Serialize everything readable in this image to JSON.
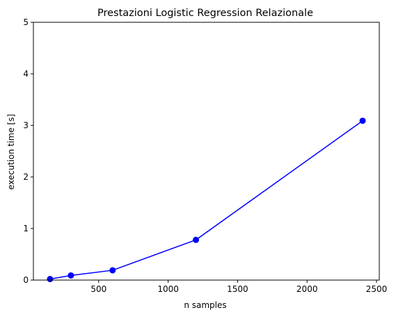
{
  "chart_data": {
    "type": "line",
    "title": "Prestazioni Logistic Regression Relazionale",
    "xlabel": "n samples",
    "ylabel": "execution time [s]",
    "x": [
      150,
      300,
      600,
      1200,
      2400
    ],
    "series": [
      {
        "values": [
          0.02,
          0.09,
          0.19,
          0.78,
          3.09
        ]
      }
    ],
    "xlim": [
      30,
      2520
    ],
    "ylim": [
      0,
      5
    ],
    "xticks": [
      500,
      1000,
      1500,
      2000,
      2500
    ],
    "yticks": [
      0,
      1,
      2,
      3,
      4,
      5
    ],
    "grid": false,
    "marker": "circle",
    "line_color": "#0000ff",
    "marker_color": "#0000ff"
  }
}
